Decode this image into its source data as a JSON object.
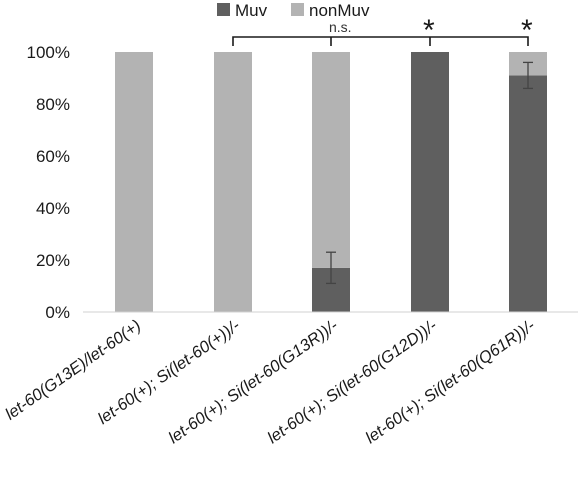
{
  "chart_data": {
    "type": "bar",
    "stacked": true,
    "categories": [
      "let-60(G13E)/let-60(+)",
      "let-60(+); Si(let-60(+))/-",
      "let-60(+); Si(let-60(G13R))/-",
      "let-60(+); Si(let-60(G12D))/-",
      "let-60(+); Si(let-60(Q61R))/-"
    ],
    "series": [
      {
        "name": "Muv",
        "color": "#5f5f5f",
        "values": [
          0,
          0,
          17,
          100,
          91
        ],
        "error": [
          0,
          0,
          6,
          0,
          5
        ]
      },
      {
        "name": "nonMuv",
        "color": "#b3b3b3",
        "values": [
          100,
          100,
          83,
          0,
          9
        ]
      }
    ],
    "ylim": [
      0,
      100
    ],
    "yticks": [
      "0%",
      "20%",
      "40%",
      "60%",
      "80%",
      "100%"
    ],
    "legend_position": "top",
    "grid": false,
    "annotations": {
      "ns": "n.s.",
      "star1": "*",
      "star2": "*"
    }
  }
}
